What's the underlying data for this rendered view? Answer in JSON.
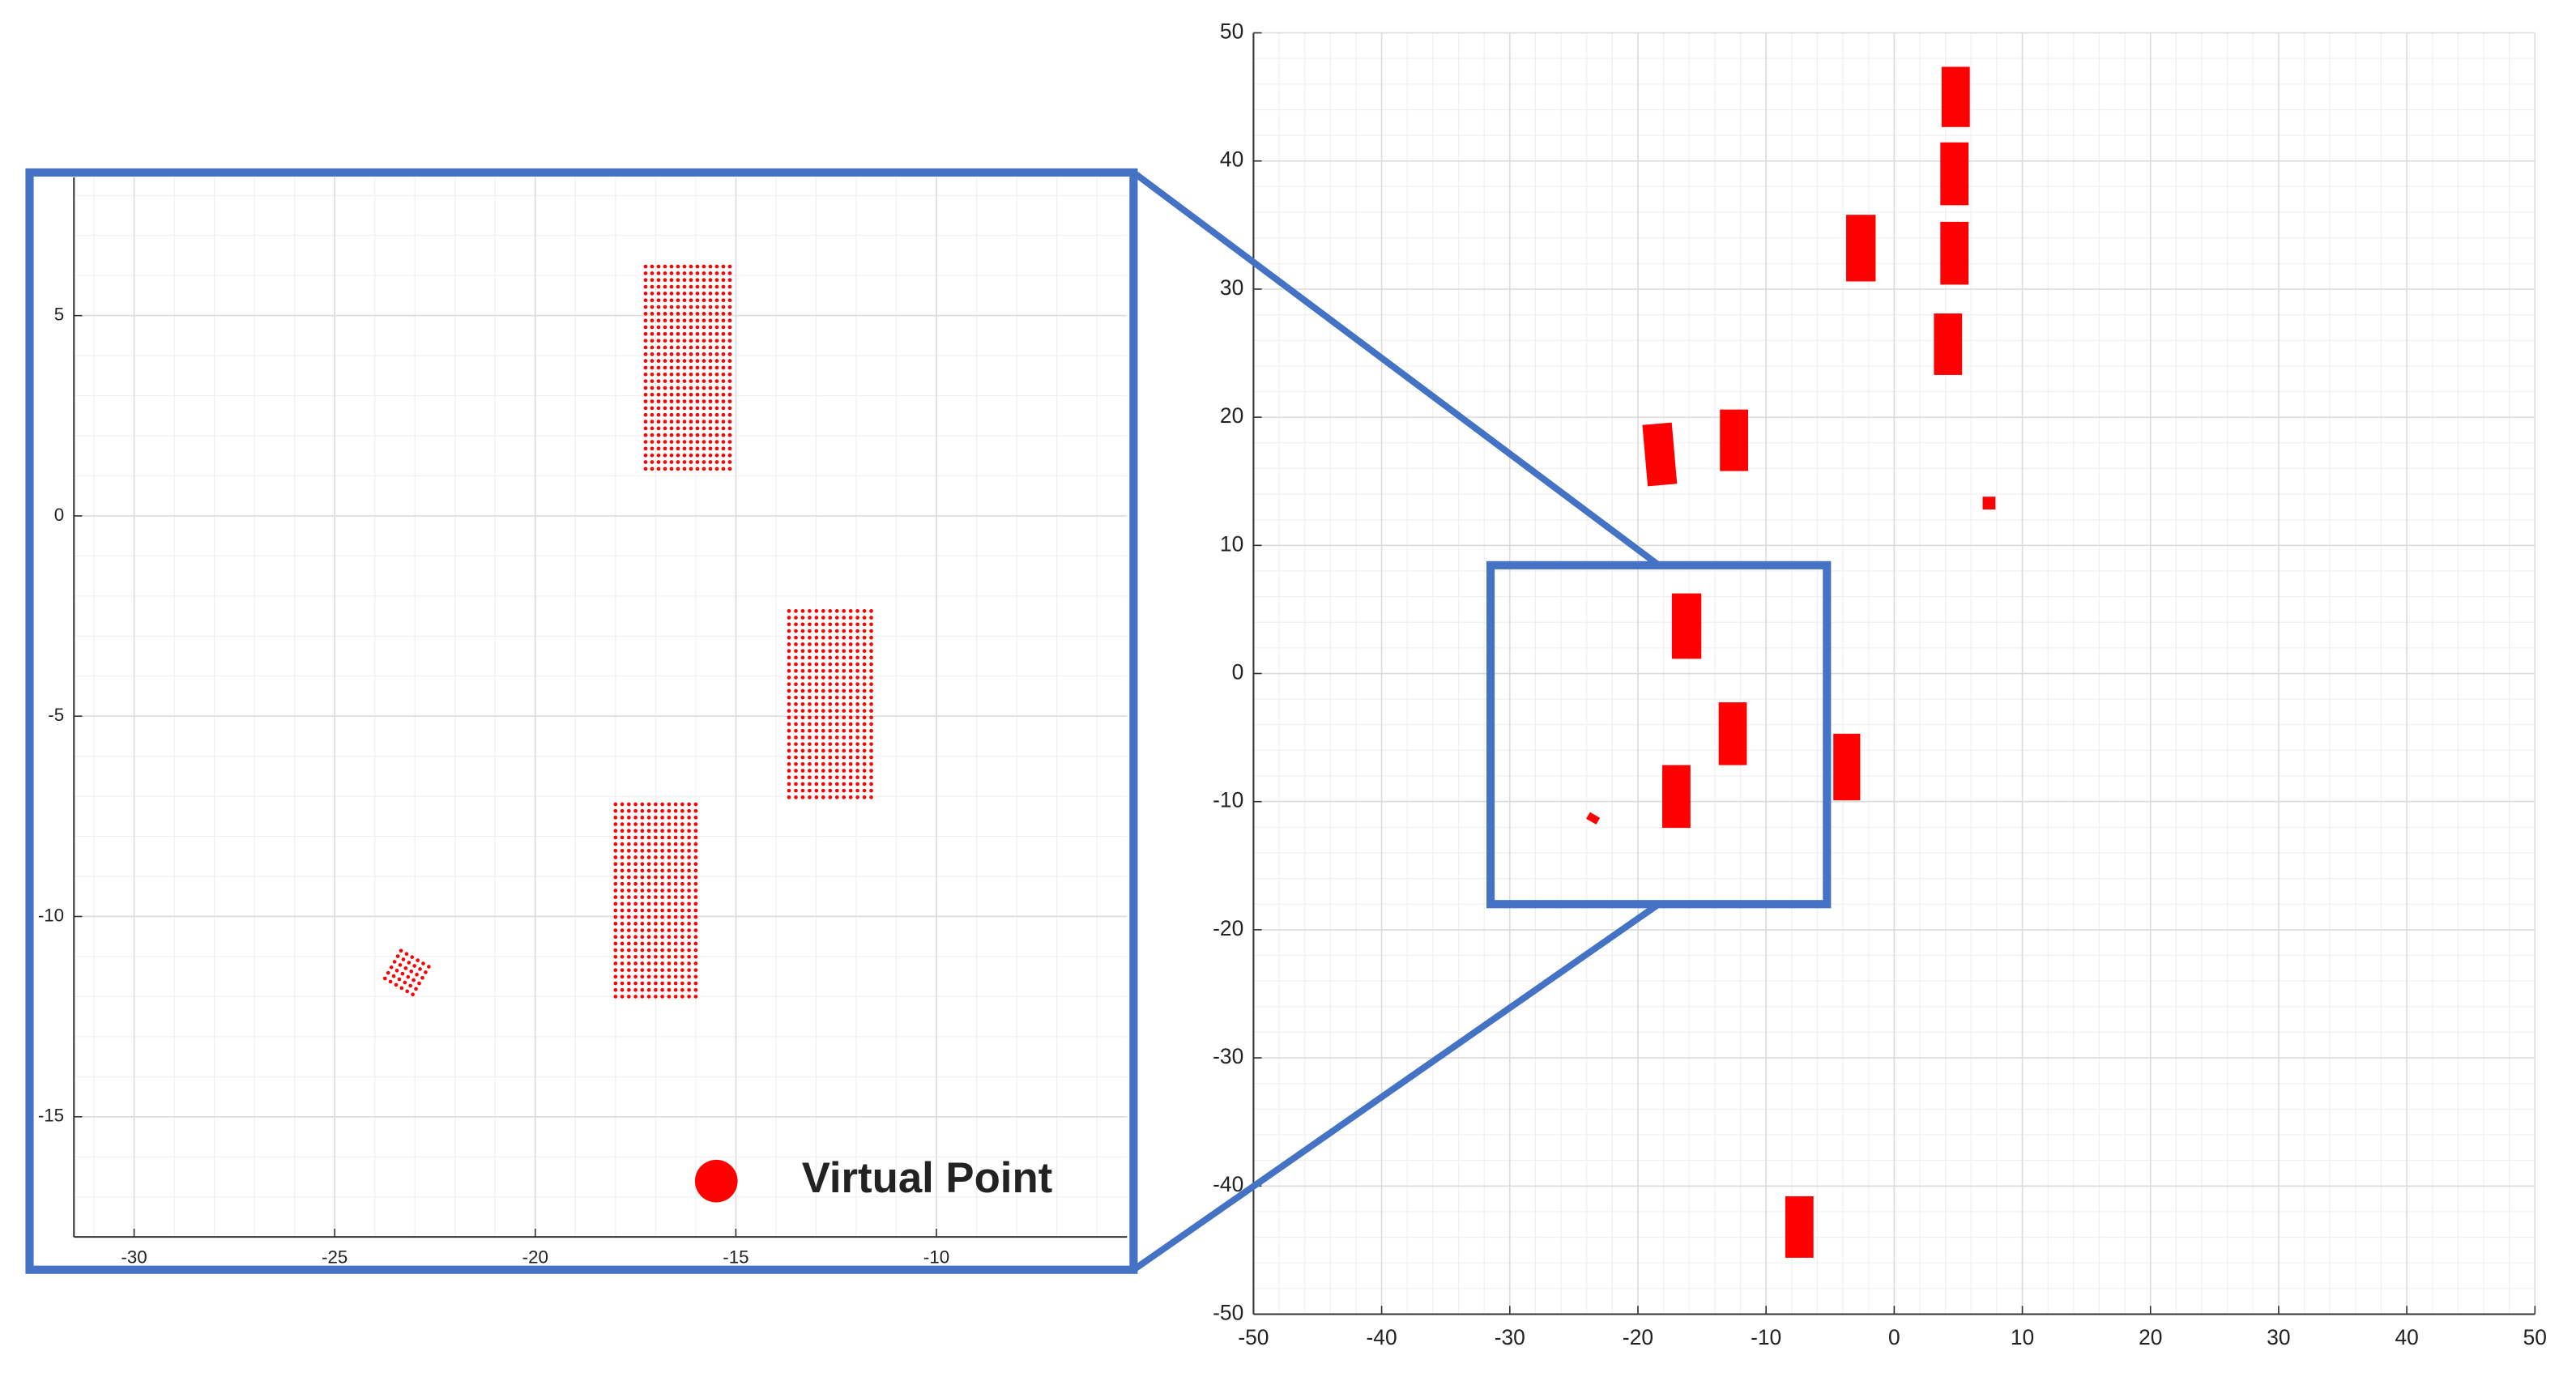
{
  "chart_data": [
    {
      "type": "scatter",
      "marker_style": "dots",
      "legend": "lower right",
      "grid": true,
      "minor_grid": true,
      "xlim": [
        -31.5,
        -5.25
      ],
      "ylim": [
        -18,
        8.45
      ],
      "xticks": [
        -30,
        -25,
        -20,
        -15,
        -10
      ],
      "yticks": [
        -15,
        -10,
        -5,
        0,
        5
      ],
      "frame_color": "#4472c4",
      "series": [
        {
          "name": "Virtual Point",
          "color": "#ff0000",
          "x": [
            -16.2,
            -12.65,
            -17.0,
            -23.2
          ],
          "y": [
            3.7,
            -4.7,
            -9.6,
            -11.4
          ],
          "width": [
            2.1,
            2.05,
            2.0,
            0.8
          ],
          "length": [
            5.05,
            4.65,
            4.8,
            0.8
          ],
          "angle": [
            0,
            0,
            0,
            30
          ]
        }
      ]
    },
    {
      "type": "scatter",
      "marker_style": "filled",
      "grid": true,
      "minor_grid": true,
      "xlim": [
        -50,
        50
      ],
      "ylim": [
        -50,
        50
      ],
      "xticks": [
        -50,
        -40,
        -30,
        -20,
        -10,
        0,
        10,
        20,
        30,
        40,
        50
      ],
      "yticks": [
        -50,
        -40,
        -30,
        -20,
        -10,
        0,
        10,
        20,
        30,
        40,
        50
      ],
      "series": [
        {
          "color": "#ff0000",
          "x": [
            4.8,
            4.7,
            -2.6,
            4.7,
            4.2,
            -18.3,
            -12.5,
            7.4,
            -16.2,
            -12.6,
            -3.7,
            -17.0,
            -23.5,
            -7.4
          ],
          "y": [
            45.0,
            39.0,
            33.2,
            32.8,
            25.7,
            17.1,
            18.2,
            13.3,
            3.7,
            -4.7,
            -7.3,
            -9.6,
            -11.3,
            -43.2
          ],
          "width": [
            2.2,
            2.2,
            2.3,
            2.2,
            2.2,
            2.3,
            2.2,
            1.0,
            2.3,
            2.2,
            2.1,
            2.2,
            0.9,
            2.2
          ],
          "length": [
            4.7,
            4.9,
            5.2,
            4.9,
            4.8,
            4.8,
            4.8,
            1.0,
            5.1,
            4.9,
            5.2,
            4.9,
            0.6,
            4.8
          ],
          "angle": [
            0,
            0,
            0,
            0,
            0,
            -5,
            0,
            0,
            0,
            0,
            0,
            0,
            30,
            0
          ]
        }
      ]
    }
  ]
}
